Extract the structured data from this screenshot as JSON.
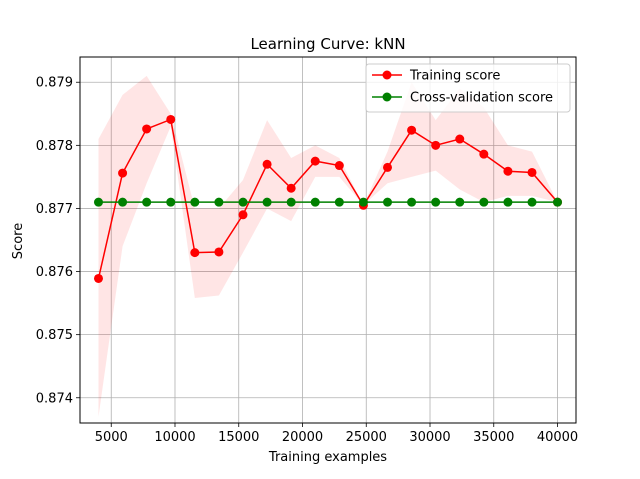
{
  "chart_data": {
    "type": "line",
    "title": "Learning Curve: kNN",
    "xlabel": "Training examples",
    "ylabel": "Score",
    "xlim": [
      2550,
      41450
    ],
    "ylim": [
      0.8736,
      0.8794
    ],
    "xticks": [
      5000,
      10000,
      15000,
      20000,
      25000,
      30000,
      35000,
      40000
    ],
    "yticks": [
      0.874,
      0.875,
      0.876,
      0.877,
      0.878,
      0.879
    ],
    "grid": true,
    "legend": {
      "placement": "top-right"
    },
    "x": [
      4000,
      5889,
      7778,
      9667,
      11556,
      13444,
      15333,
      17222,
      19111,
      21000,
      22889,
      24778,
      26667,
      28556,
      30444,
      32333,
      34222,
      36111,
      38000,
      40000
    ],
    "series": [
      {
        "name": "Training score",
        "color": "#ff0000",
        "values": [
          0.87589,
          0.87756,
          0.87826,
          0.87841,
          0.8763,
          0.87631,
          0.8769,
          0.8777,
          0.87732,
          0.87775,
          0.87768,
          0.87705,
          0.87765,
          0.87824,
          0.878,
          0.8781,
          0.87786,
          0.87759,
          0.87757,
          0.8771
        ],
        "band_lower": [
          0.8737,
          0.8764,
          0.8774,
          0.8783,
          0.87558,
          0.87562,
          0.8763,
          0.877,
          0.8768,
          0.8775,
          0.8775,
          0.87705,
          0.8774,
          0.8775,
          0.8776,
          0.8773,
          0.8771,
          0.8772,
          0.8772,
          0.8771
        ],
        "band_upper": [
          0.8781,
          0.8788,
          0.8791,
          0.8785,
          0.877,
          0.877,
          0.87745,
          0.8784,
          0.8778,
          0.878,
          0.8778,
          0.87705,
          0.8779,
          0.879,
          0.8784,
          0.8789,
          0.8786,
          0.878,
          0.8779,
          0.8771
        ]
      },
      {
        "name": "Cross-validation score",
        "color": "#008000",
        "values": [
          0.8771,
          0.8771,
          0.8771,
          0.8771,
          0.8771,
          0.8771,
          0.8771,
          0.8771,
          0.8771,
          0.8771,
          0.8771,
          0.8771,
          0.8771,
          0.8771,
          0.8771,
          0.8771,
          0.8771,
          0.8771,
          0.8771,
          0.8771
        ]
      }
    ],
    "colors": {
      "band_fill": "#ff0000",
      "grid": "#b0b0b0",
      "axes": "#000000"
    }
  }
}
